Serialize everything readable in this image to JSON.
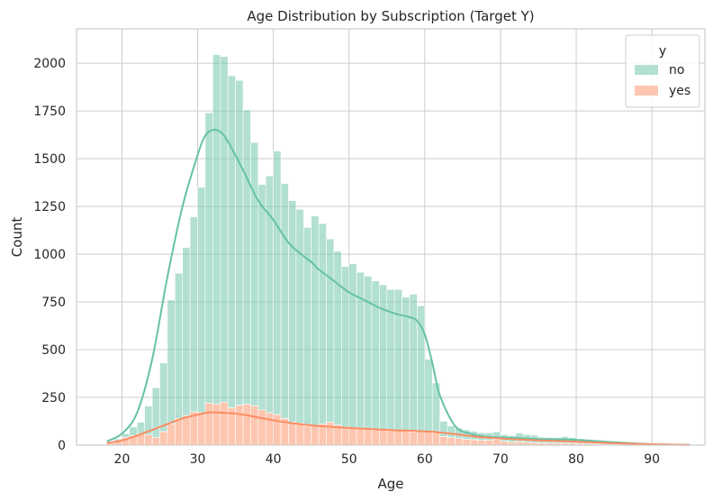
{
  "chart_data": {
    "type": "bar",
    "subtype": "stacked histogram with kde",
    "title": "Age Distribution by Subscription (Target Y)",
    "xlabel": "Age",
    "ylabel": "Count",
    "xlim": [
      14,
      97
    ],
    "ylim": [
      0,
      2180
    ],
    "xticks": [
      20,
      30,
      40,
      50,
      60,
      70,
      80,
      90
    ],
    "yticks": [
      0,
      250,
      500,
      750,
      1000,
      1250,
      1500,
      1750,
      2000
    ],
    "grid": true,
    "legend": {
      "title": "y",
      "placement": "top-right"
    },
    "colors": {
      "no": "#66c2a5",
      "yes": "#fc8d62",
      "grid": "#cccccc"
    },
    "bins": {
      "x": [
        18,
        19,
        20,
        21,
        22,
        23,
        24,
        25,
        26,
        27,
        28,
        29,
        30,
        31,
        32,
        33,
        34,
        35,
        36,
        37,
        38,
        39,
        40,
        41,
        42,
        43,
        44,
        45,
        46,
        47,
        48,
        49,
        50,
        51,
        52,
        53,
        54,
        55,
        56,
        57,
        58,
        59,
        60,
        61,
        62,
        63,
        64,
        65,
        66,
        67,
        68,
        69,
        70,
        71,
        72,
        73,
        74,
        75,
        76,
        77,
        78,
        79,
        80,
        81,
        82,
        83,
        84,
        85,
        86,
        87,
        88,
        89,
        90,
        91,
        92,
        93,
        94,
        95
      ],
      "width": 1
    },
    "series": [
      {
        "name": "no",
        "values": [
          8,
          10,
          20,
          45,
          60,
          150,
          260,
          360,
          650,
          760,
          880,
          1020,
          1180,
          1520,
          1830,
          1810,
          1740,
          1700,
          1540,
          1380,
          1180,
          1240,
          1380,
          1230,
          1160,
          1120,
          1040,
          1100,
          1050,
          960,
          910,
          840,
          860,
          820,
          800,
          780,
          760,
          740,
          740,
          700,
          720,
          660,
          380,
          260,
          80,
          60,
          55,
          50,
          45,
          40,
          40,
          40,
          35,
          35,
          45,
          40,
          40,
          32,
          30,
          30,
          35,
          30,
          25,
          20,
          16,
          12,
          10,
          10,
          8,
          6,
          5,
          4,
          3,
          2,
          2,
          1,
          1,
          1
        ]
      },
      {
        "name": "yes",
        "values": [
          10,
          22,
          40,
          50,
          60,
          55,
          40,
          70,
          110,
          140,
          155,
          175,
          170,
          220,
          215,
          225,
          195,
          210,
          215,
          205,
          185,
          170,
          160,
          140,
          120,
          115,
          100,
          100,
          110,
          120,
          105,
          95,
          90,
          85,
          85,
          80,
          80,
          75,
          75,
          75,
          70,
          70,
          70,
          65,
          45,
          40,
          35,
          30,
          28,
          25,
          25,
          30,
          20,
          15,
          18,
          15,
          12,
          10,
          10,
          10,
          10,
          10,
          8,
          6,
          5,
          4,
          3,
          3,
          2,
          2,
          2,
          1,
          1,
          1,
          1,
          1,
          1,
          1
        ]
      }
    ],
    "kde": {
      "x": [
        18,
        20,
        22,
        24,
        26,
        28,
        30,
        31,
        32,
        33,
        34,
        36,
        38,
        40,
        42,
        44,
        45,
        46,
        48,
        50,
        52,
        54,
        56,
        58,
        59,
        60,
        61,
        62,
        64,
        66,
        68,
        70,
        72,
        75,
        80,
        85,
        90,
        95
      ],
      "no": [
        20,
        60,
        170,
        450,
        880,
        1250,
        1520,
        1620,
        1650,
        1640,
        1590,
        1440,
        1280,
        1180,
        1060,
        990,
        960,
        920,
        860,
        800,
        760,
        720,
        690,
        670,
        650,
        580,
        430,
        260,
        100,
        60,
        45,
        40,
        38,
        32,
        28,
        15,
        5,
        2
      ],
      "yes": [
        10,
        25,
        50,
        80,
        110,
        140,
        160,
        168,
        172,
        170,
        168,
        160,
        145,
        130,
        118,
        108,
        104,
        100,
        95,
        90,
        86,
        82,
        78,
        76,
        74,
        72,
        70,
        66,
        58,
        48,
        40,
        35,
        30,
        25,
        18,
        10,
        4,
        1
      ]
    }
  }
}
